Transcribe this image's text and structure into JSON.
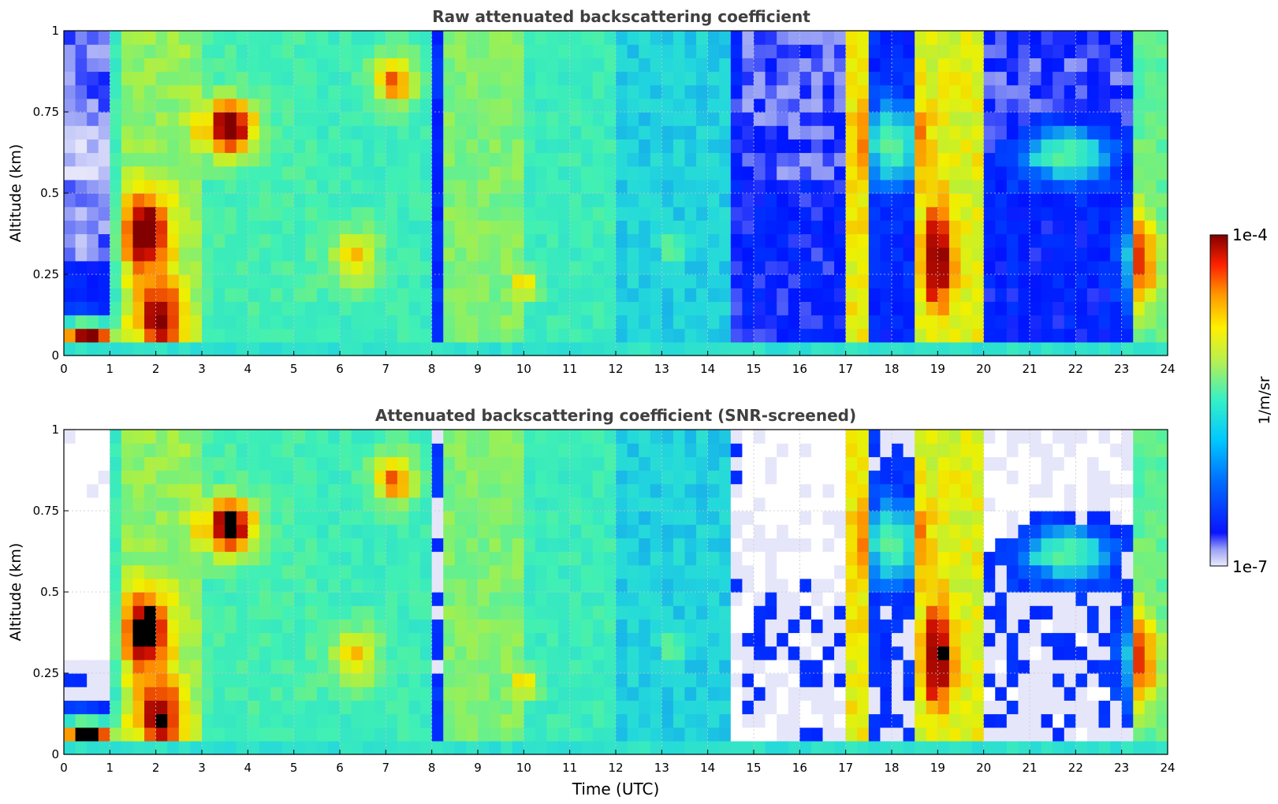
{
  "chart_data": [
    {
      "type": "heatmap",
      "title": "Raw attenuated backscattering coefficient",
      "xlabel": "",
      "ylabel": "Altitude (km)",
      "xlim": [
        0,
        24
      ],
      "ylim": [
        0,
        1
      ],
      "x_ticks": [
        "0",
        "1",
        "2",
        "3",
        "4",
        "5",
        "6",
        "7",
        "8",
        "9",
        "10",
        "11",
        "12",
        "13",
        "14",
        "15",
        "16",
        "17",
        "18",
        "19",
        "20",
        "21",
        "22",
        "23",
        "24"
      ],
      "y_ticks": [
        "0",
        "0.25",
        "0.5",
        "0.75",
        "1"
      ],
      "grid": true,
      "screened": false
    },
    {
      "type": "heatmap",
      "title": "Attenuated backscattering coefficient (SNR-screened)",
      "xlabel": "Time (UTC)",
      "ylabel": "Altitude (km)",
      "xlim": [
        0,
        24
      ],
      "ylim": [
        0,
        1
      ],
      "x_ticks": [
        "0",
        "1",
        "2",
        "3",
        "4",
        "5",
        "6",
        "7",
        "8",
        "9",
        "10",
        "11",
        "12",
        "13",
        "14",
        "15",
        "16",
        "17",
        "18",
        "19",
        "20",
        "21",
        "22",
        "23",
        "24"
      ],
      "y_ticks": [
        "0",
        "0.25",
        "0.5",
        "0.75",
        "1"
      ],
      "grid": true,
      "screened": true
    }
  ],
  "colorbar": {
    "label": "1/m/sr",
    "max_label": "1e-4",
    "min_label": "1e-7",
    "scale": "log",
    "range": [
      1e-07,
      0.0001
    ],
    "colormap": "jet"
  },
  "colors": {
    "text": "#000000",
    "title": "#404040",
    "grid": "#c8c8c8",
    "masked": "#ffffff",
    "low": "#e6e6fa",
    "blue": "#0014ff",
    "cyan": "#23d8dc",
    "green": "#8cf064",
    "yellow": "#f0f000",
    "orange": "#ff8c00",
    "red": "#dc1400",
    "darkred": "#820000",
    "black": "#000000"
  }
}
